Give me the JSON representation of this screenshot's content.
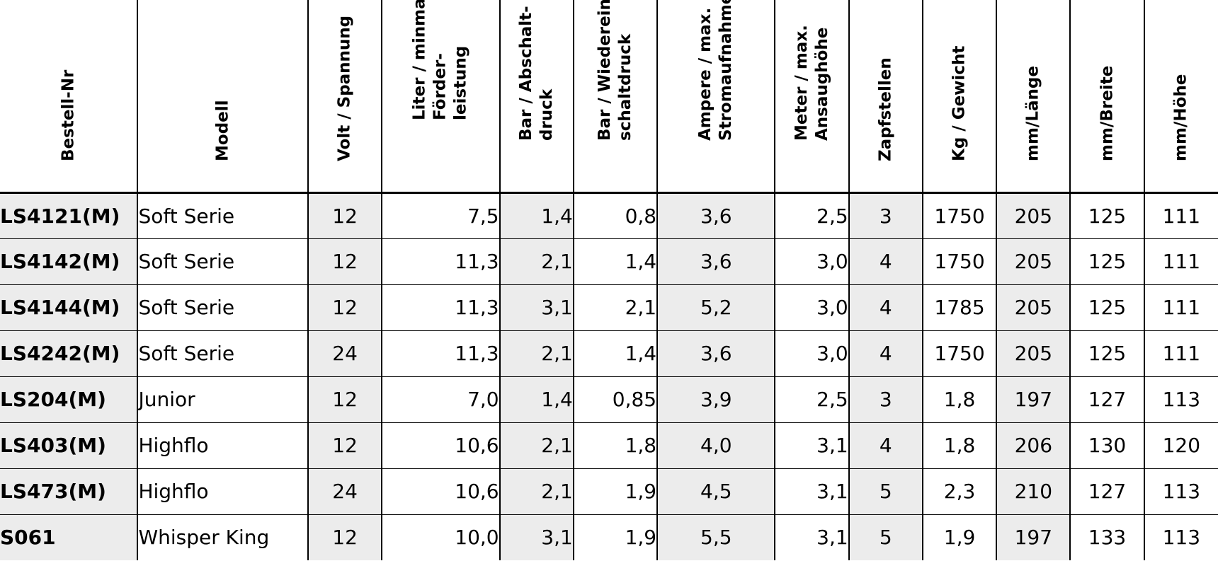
{
  "table": {
    "columns": [
      {
        "key": "bestell_nr",
        "label": "Bestell-Nr",
        "align": "id",
        "shade": true
      },
      {
        "key": "modell",
        "label": "Modell",
        "align": "model",
        "shade": false
      },
      {
        "key": "spannung",
        "label": "Volt /  Spannung",
        "align": "center",
        "shade": true
      },
      {
        "key": "foerderleistung",
        "label": "Liter / minmax.\nFörder-\nleistung",
        "align": "right",
        "shade": false
      },
      {
        "key": "abschaltdruck",
        "label": "Bar / Abschalt-\ndruck",
        "align": "right",
        "shade": true
      },
      {
        "key": "wiedereinschaltdruck",
        "label": "Bar / Wiederein-\nschaltdruck",
        "align": "right",
        "shade": false
      },
      {
        "key": "stromaufnahme",
        "label": "Ampere / max.\nStromaufnahme",
        "align": "center",
        "shade": true
      },
      {
        "key": "ansaughoehe",
        "label": "Meter / max.\nAnsaughöhe",
        "align": "right",
        "shade": false
      },
      {
        "key": "zapfstellen",
        "label": "Zapfstellen",
        "align": "center",
        "shade": true
      },
      {
        "key": "gewicht",
        "label": "Kg / Gewicht",
        "align": "center",
        "shade": false
      },
      {
        "key": "laenge",
        "label": "mm/Länge",
        "align": "center",
        "shade": true
      },
      {
        "key": "breite",
        "label": "mm/Breite",
        "align": "center",
        "shade": false
      },
      {
        "key": "hoehe",
        "label": "mm/Höhe",
        "align": "center",
        "shade": false
      }
    ],
    "rows": [
      [
        "LS4121(M)",
        "Soft Serie",
        "12",
        "7,5",
        "1,4",
        "0,8",
        "3,6",
        "2,5",
        "3",
        "1750",
        "205",
        "125",
        "111"
      ],
      [
        "LS4142(M)",
        "Soft Serie",
        "12",
        "11,3",
        "2,1",
        "1,4",
        "3,6",
        "3,0",
        "4",
        "1750",
        "205",
        "125",
        "111"
      ],
      [
        "LS4144(M)",
        "Soft Serie",
        "12",
        "11,3",
        "3,1",
        "2,1",
        "5,2",
        "3,0",
        "4",
        "1785",
        "205",
        "125",
        "111"
      ],
      [
        "LS4242(M)",
        "Soft Serie",
        "24",
        "11,3",
        "2,1",
        "1,4",
        "3,6",
        "3,0",
        "4",
        "1750",
        "205",
        "125",
        "111"
      ],
      [
        "LS204(M)",
        "Junior",
        "12",
        "7,0",
        "1,4",
        "0,85",
        "3,9",
        "2,5",
        "3",
        "1,8",
        "197",
        "127",
        "113"
      ],
      [
        "LS403(M)",
        "Highflo",
        "12",
        "10,6",
        "2,1",
        "1,8",
        "4,0",
        "3,1",
        "4",
        "1,8",
        "206",
        "130",
        "120"
      ],
      [
        "LS473(M)",
        "Highflo",
        "24",
        "10,6",
        "2,1",
        "1,9",
        "4,5",
        "3,1",
        "5",
        "2,3",
        "210",
        "127",
        "113"
      ],
      [
        "S061",
        "Whisper King",
        "12",
        "10,0",
        "3,1",
        "1,9",
        "5,5",
        "3,1",
        "5",
        "1,9",
        "197",
        "133",
        "113"
      ]
    ]
  }
}
